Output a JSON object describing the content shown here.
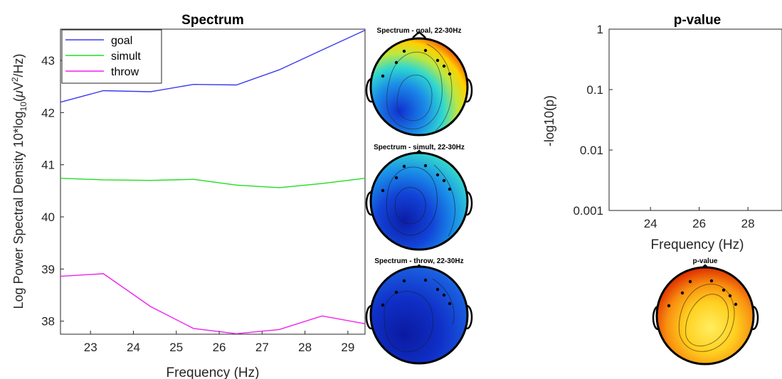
{
  "chart_data": [
    {
      "type": "line",
      "title": "Spectrum",
      "xlabel": "Frequency (Hz)",
      "ylabel_prefix": "Log Power Spectral Density 10*log",
      "ylabel_sub": "10",
      "ylabel_unit_open": "(",
      "ylabel_mu": "μ",
      "ylabel_unit_v": "V",
      "ylabel_sup": "2",
      "ylabel_unit_close": "/Hz)",
      "xlim": [
        22.3,
        29.4
      ],
      "ylim": [
        37.75,
        43.6
      ],
      "xticks": [
        "23",
        "24",
        "25",
        "26",
        "27",
        "28",
        "29"
      ],
      "yticks": [
        "38",
        "39",
        "40",
        "41",
        "42",
        "43"
      ],
      "legend_position": "top-left",
      "x": [
        22.3,
        23.3,
        24.4,
        25.4,
        26.4,
        27.4,
        28.4,
        29.4
      ],
      "series": [
        {
          "name": "goal",
          "color": "#3a3af0",
          "values": [
            42.2,
            42.42,
            42.4,
            42.54,
            42.53,
            42.82,
            43.2,
            43.58
          ]
        },
        {
          "name": "simult",
          "color": "#22dd22",
          "values": [
            40.74,
            40.71,
            40.7,
            40.72,
            40.61,
            40.56,
            40.64,
            40.74
          ]
        },
        {
          "name": "throw",
          "color": "#ee22ee",
          "values": [
            38.86,
            38.91,
            38.28,
            37.86,
            37.76,
            37.84,
            38.1,
            37.95
          ]
        }
      ]
    },
    {
      "type": "line",
      "title": "p-value",
      "xlabel": "Frequency (Hz)",
      "ylabel": "-log10(p)",
      "yscale": "log",
      "ylim": [
        0.001,
        1
      ],
      "xlim": [
        22.3,
        29.4
      ],
      "xticks": [
        "24",
        "26",
        "28"
      ],
      "yticks": [
        "1",
        "0.1",
        "0.01",
        "0.001"
      ],
      "series": []
    }
  ],
  "topomaps": [
    {
      "title": "Spectrum - goal, 22-30Hz",
      "colormap": "jet"
    },
    {
      "title": "Spectrum - simult, 22-30Hz",
      "colormap": "jet"
    },
    {
      "title": "Spectrum - throw, 22-30Hz",
      "colormap": "jet"
    },
    {
      "title": "p-value",
      "colormap": "hot"
    }
  ]
}
